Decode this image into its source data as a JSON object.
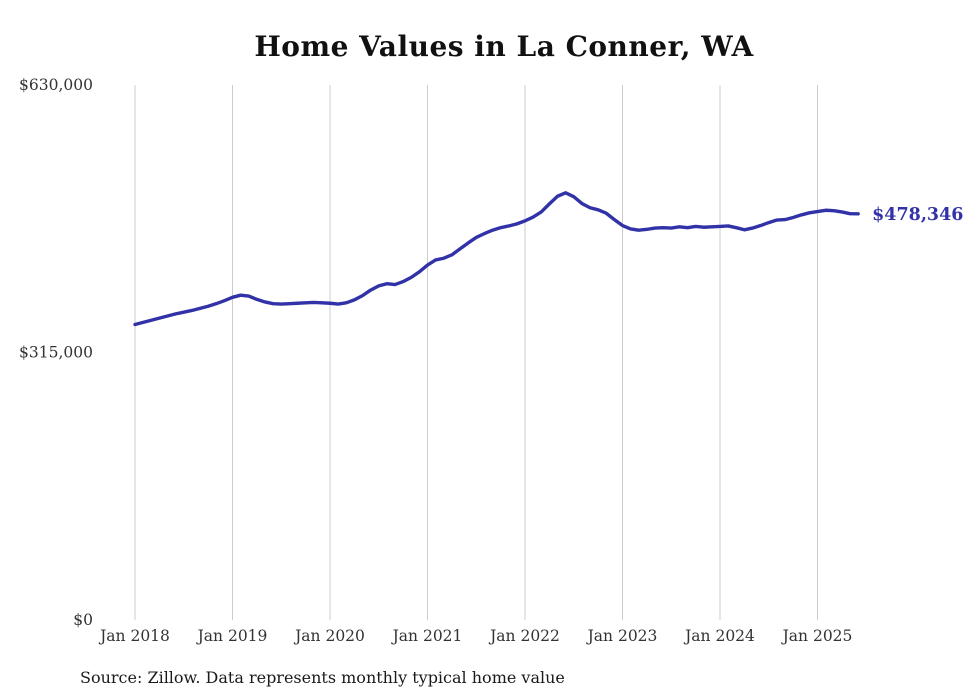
{
  "title": "Home Values in La Conner, WA",
  "source": "Source: Zillow. Data represents monthly typical home value",
  "colors": {
    "line": "#3232a8",
    "grid": "#cccccc",
    "axis_text": "#333333",
    "title_text": "#111111"
  },
  "chart_data": {
    "type": "line",
    "title": "Home Values in La Conner, WA",
    "xlabel": "",
    "ylabel": "",
    "ylim": [
      0,
      630000
    ],
    "grid": "vertical-only",
    "legend": "none",
    "x_start_month": "Jan 2018",
    "x_end_month": "Jun 2025",
    "x_tick_labels": [
      "Jan 2018",
      "Jan 2019",
      "Jan 2020",
      "Jan 2021",
      "Jan 2022",
      "Jan 2023",
      "Jan 2024",
      "Jan 2025"
    ],
    "y_ticks": [
      {
        "label": "$0",
        "value": 0
      },
      {
        "label": "$315,000",
        "value": 315000
      },
      {
        "label": "$630,000",
        "value": 630000
      }
    ],
    "series": [
      {
        "name": "Monthly typical home value",
        "values": [
          348000,
          350500,
          353000,
          355500,
          358000,
          360500,
          362500,
          364500,
          367000,
          369500,
          372500,
          376000,
          380000,
          382500,
          381500,
          377500,
          374500,
          372500,
          372000,
          372500,
          373000,
          373500,
          374000,
          373500,
          373000,
          372000,
          373500,
          377000,
          382000,
          388500,
          393500,
          396000,
          395000,
          398500,
          403500,
          410000,
          418000,
          424000,
          426000,
          430000,
          437000,
          444000,
          450500,
          455000,
          459000,
          462000,
          464000,
          466500,
          470000,
          474500,
          480500,
          490000,
          499000,
          503000,
          498500,
          490500,
          485500,
          483000,
          479000,
          471500,
          464500,
          460500,
          459000,
          460000,
          461500,
          462000,
          461500,
          463000,
          462000,
          463500,
          462500,
          463000,
          463500,
          464000,
          462000,
          459500,
          461500,
          464500,
          468000,
          471000,
          471500,
          474000,
          477000,
          479500,
          481000,
          482500,
          482000,
          480500,
          478500,
          478346
        ]
      }
    ],
    "annotation": {
      "text": "$478,346",
      "value": 478346,
      "position": "end-of-line"
    }
  }
}
